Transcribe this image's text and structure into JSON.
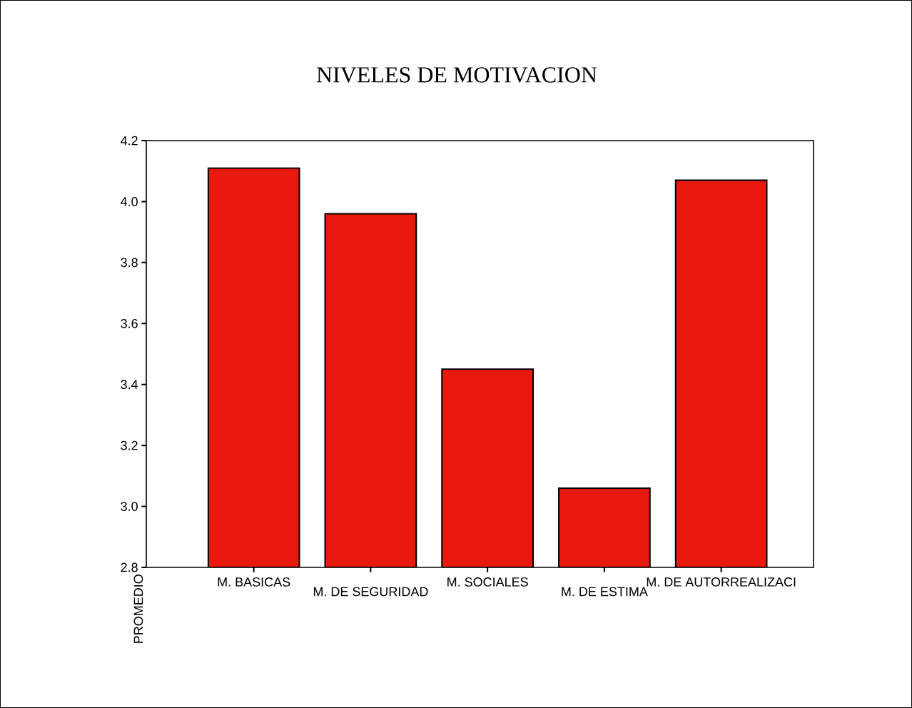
{
  "chart_data": {
    "type": "bar",
    "title": "NIVELES DE MOTIVACION",
    "ylabel": "PROMEDIO",
    "categories": [
      "M. BASICAS",
      "M. DE SEGURIDAD",
      "M. SOCIALES",
      "M. DE ESTIMA",
      "M. DE AUTORREALIZACI"
    ],
    "values": [
      4.11,
      3.96,
      3.45,
      3.06,
      4.07
    ],
    "color": "#e8190e",
    "ylim": [
      2.8,
      4.2
    ],
    "yticks": [
      {
        "value": 2.8,
        "label": "2.8"
      },
      {
        "value": 3.0,
        "label": "3.0"
      },
      {
        "value": 3.2,
        "label": "3.2"
      },
      {
        "value": 3.4,
        "label": "3.4"
      },
      {
        "value": 3.6,
        "label": "3.6"
      },
      {
        "value": 3.8,
        "label": "3.8"
      },
      {
        "value": 4.0,
        "label": "4.0"
      },
      {
        "value": 4.2,
        "label": "4.2"
      }
    ]
  }
}
